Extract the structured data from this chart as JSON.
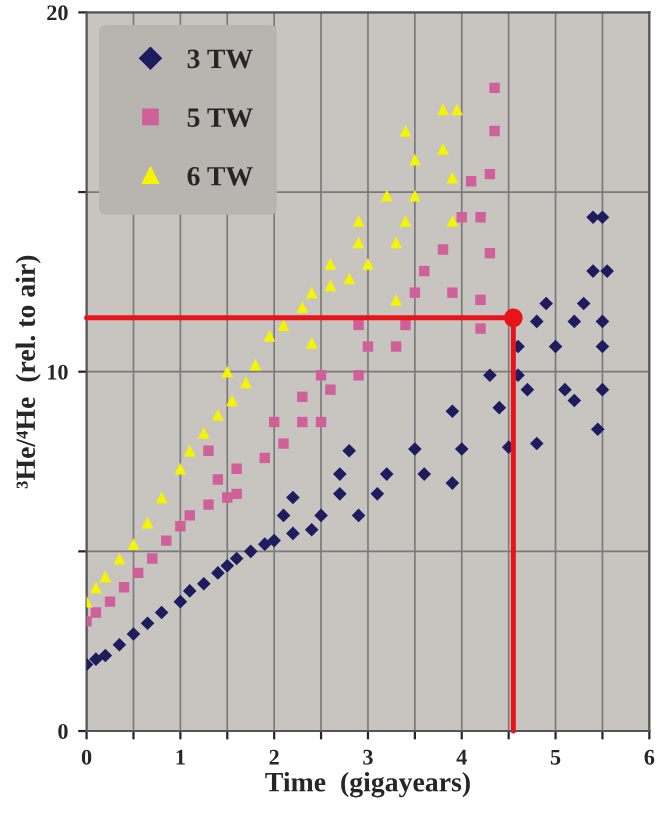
{
  "chart_data": {
    "type": "scatter",
    "xlabel": "Time  (gigayears)",
    "ylabel": "³He/⁴He  (rel. to air)",
    "xlim": [
      0,
      6
    ],
    "ylim": [
      0,
      20
    ],
    "xticks": [
      0,
      {
        "value": 0.5,
        "label": null
      },
      1,
      {
        "value": 1.5,
        "label": null
      },
      2,
      {
        "value": 2.5,
        "label": null
      },
      3,
      {
        "value": 3.5,
        "label": null
      },
      4,
      {
        "value": 4.5,
        "label": null
      },
      5,
      {
        "value": 5.5,
        "label": null
      },
      6
    ],
    "yticks": [
      0,
      {
        "value": 5,
        "label": null
      },
      10,
      {
        "value": 15,
        "label": null
      },
      20
    ],
    "grid": true,
    "legend": "top left",
    "series": [
      {
        "name": "3 TW",
        "color": "#1c1c5e",
        "marker": "diamond",
        "x": [
          0,
          0.1,
          0.2,
          0.35,
          0.5,
          0.65,
          0.8,
          1.0,
          1.1,
          1.25,
          1.4,
          1.5,
          1.6,
          1.75,
          1.9,
          2.0,
          2.2,
          2.4,
          2.1,
          2.5,
          2.9,
          2.2,
          2.7,
          3.1,
          2.7,
          3.2,
          3.6,
          3.9,
          2.8,
          3.5,
          4.0,
          4.5,
          4.8,
          3.9,
          4.4,
          5.2,
          4.3,
          4.6,
          4.7,
          5.1,
          5.5,
          4.6,
          5.0,
          5.5,
          4.8,
          5.2,
          5.5,
          4.9,
          5.3,
          5.4,
          5.55,
          5.4,
          5.5,
          5.45
        ],
        "values": [
          1.85,
          2.0,
          2.1,
          2.4,
          2.7,
          3.0,
          3.3,
          3.6,
          3.9,
          4.1,
          4.4,
          4.6,
          4.8,
          5.0,
          5.2,
          5.3,
          5.5,
          5.6,
          6.0,
          6.0,
          6.0,
          6.5,
          6.6,
          6.6,
          7.15,
          7.15,
          7.15,
          6.9,
          7.8,
          7.85,
          7.85,
          7.9,
          8.0,
          8.9,
          9.0,
          9.2,
          9.9,
          9.9,
          9.5,
          9.5,
          9.5,
          10.7,
          10.7,
          10.7,
          11.4,
          11.4,
          11.4,
          11.9,
          11.9,
          12.8,
          12.8,
          14.3,
          14.3,
          8.4
        ]
      },
      {
        "name": "5 TW",
        "color": "#d0609a",
        "marker": "square",
        "x": [
          0,
          0.1,
          0.25,
          0.4,
          0.55,
          0.7,
          0.85,
          1.0,
          1.1,
          1.3,
          1.5,
          1.4,
          1.6,
          1.9,
          2.1,
          2.3,
          2.5,
          2.0,
          2.3,
          2.6,
          2.5,
          2.9,
          3.0,
          3.3,
          2.9,
          3.4,
          3.5,
          3.9,
          4.2,
          3.6,
          4.3,
          3.8,
          4.2,
          4.0,
          4.3,
          4.1,
          4.35,
          4.35,
          4.2,
          1.3,
          1.6
        ],
        "values": [
          3.05,
          3.3,
          3.6,
          4.0,
          4.4,
          4.8,
          5.3,
          5.7,
          6.0,
          6.3,
          6.5,
          7.0,
          7.3,
          7.6,
          8.0,
          8.6,
          8.6,
          8.6,
          9.3,
          9.5,
          9.9,
          9.9,
          10.7,
          10.7,
          11.3,
          11.3,
          12.2,
          12.2,
          12.0,
          12.8,
          13.3,
          13.4,
          14.3,
          14.3,
          15.5,
          15.3,
          16.7,
          17.9,
          11.2,
          7.8,
          6.6
        ]
      },
      {
        "name": "6 TW",
        "color": "#f5f500",
        "marker": "triangle",
        "x": [
          0,
          0.1,
          0.2,
          0.35,
          0.5,
          0.65,
          0.8,
          1.0,
          1.1,
          1.25,
          1.4,
          1.55,
          1.7,
          1.8,
          1.95,
          2.1,
          2.3,
          2.4,
          2.6,
          2.8,
          2.6,
          3.0,
          2.9,
          3.3,
          2.9,
          3.4,
          3.9,
          3.2,
          3.5,
          3.9,
          3.5,
          3.4,
          3.8,
          3.8,
          3.95,
          3.3,
          2.4,
          1.5
        ],
        "values": [
          3.6,
          4.0,
          4.3,
          4.8,
          5.2,
          5.8,
          6.5,
          7.3,
          7.8,
          8.3,
          8.8,
          9.2,
          9.7,
          10.2,
          11.0,
          11.3,
          11.8,
          12.2,
          12.4,
          12.6,
          13.0,
          13.0,
          13.6,
          13.6,
          14.2,
          14.2,
          14.2,
          14.9,
          14.9,
          15.4,
          15.9,
          16.7,
          16.2,
          17.3,
          17.3,
          12.0,
          10.8,
          10.0
        ]
      },
      {
        "type": "line",
        "color": "#e8141c",
        "marker": "none",
        "x": [
          0,
          4.55
        ],
        "values": [
          11.5,
          11.5
        ]
      },
      {
        "type": "line",
        "color": "#e8141c",
        "marker": "none",
        "x": [
          4.55,
          4.55
        ],
        "values": [
          11.5,
          0
        ]
      },
      {
        "color": "#e8141c",
        "marker": "circle",
        "x": [
          4.55
        ],
        "values": [
          11.5
        ]
      }
    ]
  }
}
